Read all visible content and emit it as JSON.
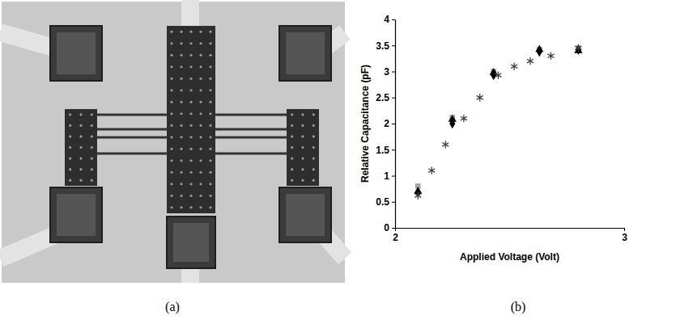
{
  "chart_data": {
    "type": "scatter",
    "x_label": "Applied Voltage (Volt)",
    "y_label": "Relative Capacitance (pF)",
    "xlim": [
      2,
      3
    ],
    "xticks": [
      2,
      3
    ],
    "ylim": [
      0,
      4
    ],
    "yticks": [
      0,
      0.5,
      1,
      1.5,
      2,
      2.5,
      3,
      3.5,
      4
    ],
    "grid": false,
    "series": [
      {
        "marker": "square",
        "color": "#a6a6a6",
        "x": [
          2.1,
          2.25,
          2.43,
          2.63,
          2.8
        ],
        "values": [
          0.8,
          2.12,
          3.0,
          3.42,
          3.45
        ]
      },
      {
        "marker": "triangle",
        "color": "#000000",
        "x": [
          2.1,
          2.25,
          2.43,
          2.63,
          2.8
        ],
        "values": [
          0.7,
          2.08,
          2.98,
          3.42,
          3.4
        ]
      },
      {
        "marker": "diamond",
        "color": "#000000",
        "x": [
          2.1,
          2.25,
          2.43,
          2.63,
          2.8
        ],
        "values": [
          0.68,
          2.0,
          2.93,
          3.38,
          3.42
        ]
      },
      {
        "marker": "asterisk",
        "color": "#404040",
        "x": [
          2.1,
          2.16,
          2.22,
          2.3,
          2.37,
          2.45,
          2.52,
          2.59,
          2.68,
          2.8
        ],
        "values": [
          0.62,
          1.1,
          1.6,
          2.1,
          2.5,
          2.93,
          3.1,
          3.2,
          3.3,
          3.45
        ]
      }
    ]
  },
  "panel_labels": [
    "(a)",
    "(b)"
  ]
}
